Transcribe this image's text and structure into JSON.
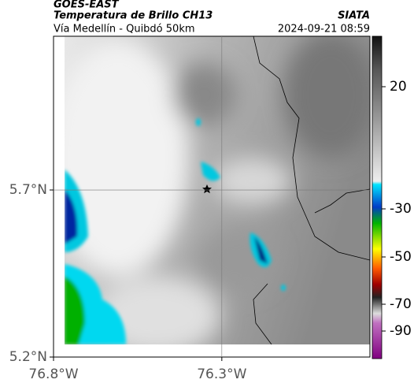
{
  "header": {
    "source": "GOES-EAST",
    "title": "Temperatura de Brillo CH13",
    "brand": "SIATA",
    "subtitle": "Vía Medellín - Quibdó 50km",
    "datetime": "2024-09-21 08:59"
  },
  "map": {
    "xlim": [
      -76.8,
      -75.86
    ],
    "ylim": [
      5.2,
      6.16
    ],
    "xticks": [
      {
        "value": -76.8,
        "label": "76.8°W"
      },
      {
        "value": -76.3,
        "label": "76.3°W"
      }
    ],
    "yticks": [
      {
        "value": 5.2,
        "label": "5.2°N"
      },
      {
        "value": 5.7,
        "label": "5.7°N"
      }
    ]
  },
  "colorbar": {
    "ticks": [
      20,
      -30,
      -50,
      -70,
      -90
    ]
  }
}
